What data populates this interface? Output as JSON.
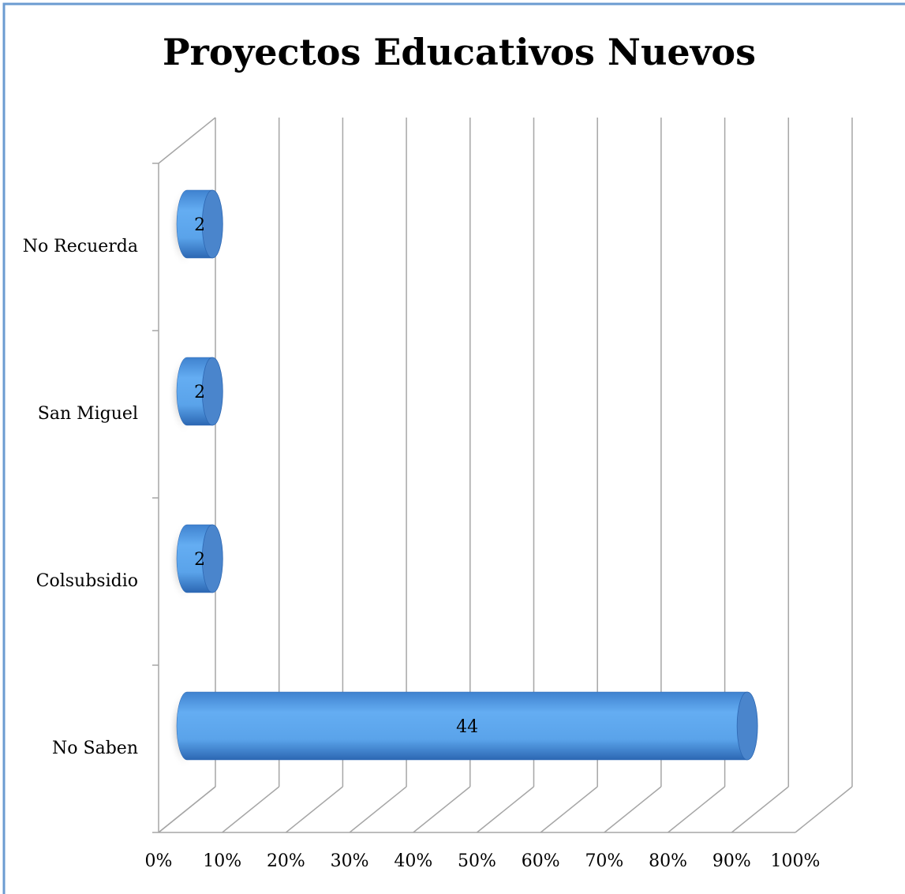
{
  "chart_data": {
    "type": "bar3d_horizontal",
    "title": "Proyectos Educativos Nuevos",
    "categories": [
      "No Saben",
      "Colsubsidio",
      "San Miguel",
      "No Recuerda"
    ],
    "values": [
      88,
      4,
      4,
      4
    ],
    "counts": [
      44,
      2,
      2,
      2
    ],
    "color": "#5aa3ea",
    "xlim": [
      0,
      100
    ],
    "xticks": [
      {
        "value": 0,
        "label": "0%"
      },
      {
        "value": 10,
        "label": "10%"
      },
      {
        "value": 20,
        "label": "20%"
      },
      {
        "value": 30,
        "label": "30%"
      },
      {
        "value": 40,
        "label": "40%"
      },
      {
        "value": 50,
        "label": "50%"
      },
      {
        "value": 60,
        "label": "60%"
      },
      {
        "value": 70,
        "label": "70%"
      },
      {
        "value": 80,
        "label": "80%"
      },
      {
        "value": 90,
        "label": "90%"
      },
      {
        "value": 100,
        "label": "100%"
      }
    ],
    "grid": true
  }
}
